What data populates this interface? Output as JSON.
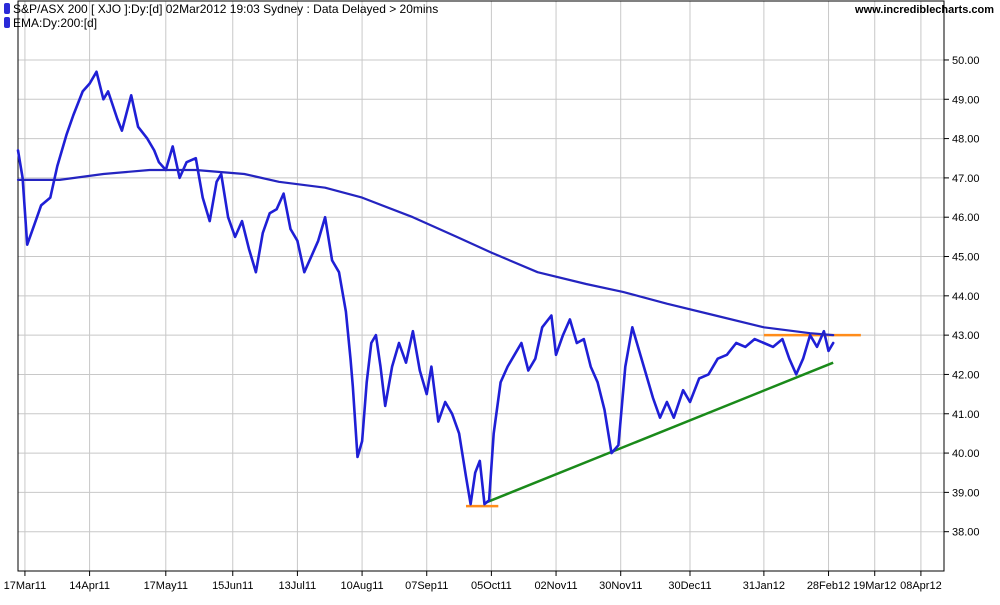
{
  "header": {
    "title": "S&P/ASX 200 [ XJO ]:Dy:[d]  02Mar2012 19:03 Sydney : Data Delayed > 20mins",
    "indicator": "EMA:Dy:200:[d]",
    "site": "www.incrediblecharts.com"
  },
  "colors": {
    "price": "#1f1fd6",
    "ema": "#2424c0",
    "support": "#1a8a1a",
    "resistance": "#ff8c1a",
    "grid": "#c8c8c8",
    "border": "#000000"
  },
  "chart_data": {
    "type": "line",
    "title": "S&P/ASX 200 [ XJO ]:Dy:[d]  02Mar2012 19:03 Sydney : Data Delayed > 20mins",
    "xlabel": "",
    "ylabel": "",
    "y_scale_note": "price in hundreds",
    "ylim": [
      37.0,
      51.5
    ],
    "xlim": [
      "2011-03-14",
      "2012-04-18"
    ],
    "grid": true,
    "legend_position": "top-left",
    "x_ticks": [
      {
        "label": "17Mar11",
        "date": "2011-03-17"
      },
      {
        "label": "14Apr11",
        "date": "2011-04-14"
      },
      {
        "label": "17May11",
        "date": "2011-05-17"
      },
      {
        "label": "15Jun11",
        "date": "2011-06-15"
      },
      {
        "label": "13Jul11",
        "date": "2011-07-13"
      },
      {
        "label": "10Aug11",
        "date": "2011-08-10"
      },
      {
        "label": "07Sep11",
        "date": "2011-09-07"
      },
      {
        "label": "05Oct11",
        "date": "2011-10-05"
      },
      {
        "label": "02Nov11",
        "date": "2011-11-02"
      },
      {
        "label": "30Nov11",
        "date": "2011-11-30"
      },
      {
        "label": "30Dec11",
        "date": "2011-12-30"
      },
      {
        "label": "31Jan12",
        "date": "2012-01-31"
      },
      {
        "label": "28Feb12",
        "date": "2012-02-28"
      },
      {
        "label": "19Mar12",
        "date": "2012-03-19"
      },
      {
        "label": "08Apr12",
        "date": "2012-04-08"
      }
    ],
    "y_ticks": [
      "38.00",
      "39.00",
      "40.00",
      "41.00",
      "42.00",
      "43.00",
      "44.00",
      "45.00",
      "46.00",
      "47.00",
      "48.00",
      "49.00",
      "50.00"
    ],
    "series": [
      {
        "name": "S&P/ASX 200 [ XJO ]:Dy:[d]",
        "points": [
          [
            "2011-03-14",
            47.7
          ],
          [
            "2011-03-16",
            47.0
          ],
          [
            "2011-03-18",
            45.3
          ],
          [
            "2011-03-21",
            45.8
          ],
          [
            "2011-03-24",
            46.3
          ],
          [
            "2011-03-28",
            46.5
          ],
          [
            "2011-03-31",
            47.3
          ],
          [
            "2011-04-04",
            48.1
          ],
          [
            "2011-04-07",
            48.6
          ],
          [
            "2011-04-11",
            49.2
          ],
          [
            "2011-04-14",
            49.4
          ],
          [
            "2011-04-17",
            49.7
          ],
          [
            "2011-04-20",
            49.0
          ],
          [
            "2011-04-22",
            49.2
          ],
          [
            "2011-04-26",
            48.5
          ],
          [
            "2011-04-28",
            48.2
          ],
          [
            "2011-05-02",
            49.1
          ],
          [
            "2011-05-05",
            48.3
          ],
          [
            "2011-05-09",
            48.0
          ],
          [
            "2011-05-12",
            47.7
          ],
          [
            "2011-05-14",
            47.4
          ],
          [
            "2011-05-17",
            47.2
          ],
          [
            "2011-05-20",
            47.8
          ],
          [
            "2011-05-23",
            47.0
          ],
          [
            "2011-05-26",
            47.4
          ],
          [
            "2011-05-30",
            47.5
          ],
          [
            "2011-06-02",
            46.5
          ],
          [
            "2011-06-05",
            45.9
          ],
          [
            "2011-06-08",
            46.9
          ],
          [
            "2011-06-10",
            47.1
          ],
          [
            "2011-06-13",
            46.0
          ],
          [
            "2011-06-16",
            45.5
          ],
          [
            "2011-06-19",
            45.9
          ],
          [
            "2011-06-22",
            45.2
          ],
          [
            "2011-06-25",
            44.6
          ],
          [
            "2011-06-28",
            45.6
          ],
          [
            "2011-07-01",
            46.1
          ],
          [
            "2011-07-04",
            46.2
          ],
          [
            "2011-07-07",
            46.6
          ],
          [
            "2011-07-10",
            45.7
          ],
          [
            "2011-07-13",
            45.4
          ],
          [
            "2011-07-16",
            44.6
          ],
          [
            "2011-07-19",
            45.0
          ],
          [
            "2011-07-22",
            45.4
          ],
          [
            "2011-07-25",
            46.0
          ],
          [
            "2011-07-28",
            44.9
          ],
          [
            "2011-07-31",
            44.6
          ],
          [
            "2011-08-03",
            43.6
          ],
          [
            "2011-08-05",
            42.4
          ],
          [
            "2011-08-06",
            41.7
          ],
          [
            "2011-08-08",
            39.9
          ],
          [
            "2011-08-10",
            40.3
          ],
          [
            "2011-08-12",
            41.8
          ],
          [
            "2011-08-14",
            42.8
          ],
          [
            "2011-08-16",
            43.0
          ],
          [
            "2011-08-18",
            42.2
          ],
          [
            "2011-08-20",
            41.2
          ],
          [
            "2011-08-23",
            42.2
          ],
          [
            "2011-08-26",
            42.8
          ],
          [
            "2011-08-29",
            42.3
          ],
          [
            "2011-09-01",
            43.1
          ],
          [
            "2011-09-04",
            42.1
          ],
          [
            "2011-09-07",
            41.5
          ],
          [
            "2011-09-09",
            42.2
          ],
          [
            "2011-09-12",
            40.8
          ],
          [
            "2011-09-15",
            41.3
          ],
          [
            "2011-09-18",
            41.0
          ],
          [
            "2011-09-21",
            40.5
          ],
          [
            "2011-09-24",
            39.4
          ],
          [
            "2011-09-26",
            38.7
          ],
          [
            "2011-09-28",
            39.5
          ],
          [
            "2011-09-30",
            39.8
          ],
          [
            "2011-10-02",
            38.7
          ],
          [
            "2011-10-04",
            38.8
          ],
          [
            "2011-10-06",
            40.5
          ],
          [
            "2011-10-09",
            41.8
          ],
          [
            "2011-10-12",
            42.2
          ],
          [
            "2011-10-15",
            42.5
          ],
          [
            "2011-10-18",
            42.8
          ],
          [
            "2011-10-21",
            42.1
          ],
          [
            "2011-10-24",
            42.4
          ],
          [
            "2011-10-27",
            43.2
          ],
          [
            "2011-10-31",
            43.5
          ],
          [
            "2011-11-02",
            42.5
          ],
          [
            "2011-11-05",
            43.0
          ],
          [
            "2011-11-08",
            43.4
          ],
          [
            "2011-11-11",
            42.8
          ],
          [
            "2011-11-14",
            42.9
          ],
          [
            "2011-11-17",
            42.2
          ],
          [
            "2011-11-20",
            41.8
          ],
          [
            "2011-11-23",
            41.1
          ],
          [
            "2011-11-26",
            40.0
          ],
          [
            "2011-11-29",
            40.2
          ],
          [
            "2011-12-02",
            42.2
          ],
          [
            "2011-12-05",
            43.2
          ],
          [
            "2011-12-08",
            42.6
          ],
          [
            "2011-12-11",
            42.0
          ],
          [
            "2011-12-14",
            41.4
          ],
          [
            "2011-12-17",
            40.9
          ],
          [
            "2011-12-20",
            41.3
          ],
          [
            "2011-12-23",
            40.9
          ],
          [
            "2011-12-27",
            41.6
          ],
          [
            "2011-12-30",
            41.3
          ],
          [
            "2012-01-03",
            41.9
          ],
          [
            "2012-01-07",
            42.0
          ],
          [
            "2012-01-11",
            42.4
          ],
          [
            "2012-01-15",
            42.5
          ],
          [
            "2012-01-19",
            42.8
          ],
          [
            "2012-01-23",
            42.7
          ],
          [
            "2012-01-27",
            42.9
          ],
          [
            "2012-01-31",
            42.8
          ],
          [
            "2012-02-04",
            42.7
          ],
          [
            "2012-02-08",
            42.9
          ],
          [
            "2012-02-11",
            42.4
          ],
          [
            "2012-02-14",
            42.0
          ],
          [
            "2012-02-17",
            42.4
          ],
          [
            "2012-02-20",
            43.0
          ],
          [
            "2012-02-23",
            42.7
          ],
          [
            "2012-02-26",
            43.1
          ],
          [
            "2012-02-28",
            42.6
          ],
          [
            "2012-03-01",
            42.8
          ]
        ]
      },
      {
        "name": "EMA:Dy:200:[d]",
        "points": [
          [
            "2011-03-14",
            46.95
          ],
          [
            "2011-04-01",
            46.95
          ],
          [
            "2011-04-20",
            47.1
          ],
          [
            "2011-05-10",
            47.2
          ],
          [
            "2011-05-30",
            47.2
          ],
          [
            "2011-06-20",
            47.1
          ],
          [
            "2011-07-05",
            46.9
          ],
          [
            "2011-07-25",
            46.75
          ],
          [
            "2011-08-10",
            46.5
          ],
          [
            "2011-09-01",
            46.0
          ],
          [
            "2011-09-20",
            45.5
          ],
          [
            "2011-10-05",
            45.1
          ],
          [
            "2011-10-25",
            44.6
          ],
          [
            "2011-11-15",
            44.3
          ],
          [
            "2011-12-01",
            44.1
          ],
          [
            "2011-12-20",
            43.8
          ],
          [
            "2012-01-10",
            43.5
          ],
          [
            "2012-01-31",
            43.2
          ],
          [
            "2012-02-20",
            43.05
          ],
          [
            "2012-03-01",
            43.0
          ]
        ]
      }
    ],
    "annotations": [
      {
        "type": "trendline",
        "name": "support-trendline",
        "from": [
          "2011-10-03",
          38.75
        ],
        "to": [
          "2012-03-01",
          42.3
        ]
      },
      {
        "type": "hline",
        "name": "resistance-line",
        "from": [
          "2012-01-31",
          43.0
        ],
        "to": [
          "2012-03-13",
          43.0
        ]
      },
      {
        "type": "hline",
        "name": "low-line",
        "from": [
          "2011-09-24",
          38.65
        ],
        "to": [
          "2011-10-08",
          38.65
        ]
      }
    ]
  }
}
